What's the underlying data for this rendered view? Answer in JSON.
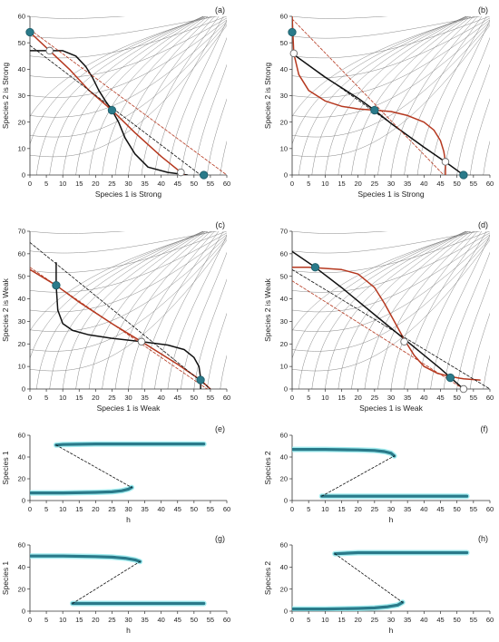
{
  "chart_data": [
    {
      "panel": "(a)",
      "type": "line",
      "xlabel": "Species 1 is Strong",
      "ylabel": "Species 2 is Strong",
      "xlim": [
        0,
        60
      ],
      "ylim": [
        0,
        60
      ],
      "xticks": [
        0,
        5,
        10,
        15,
        20,
        25,
        30,
        35,
        40,
        45,
        50,
        55,
        60
      ],
      "yticks": [
        0,
        10,
        20,
        30,
        40,
        50,
        60
      ],
      "series": [
        {
          "role": "nullcline-black",
          "color": "#111111",
          "x": [
            0,
            5,
            10,
            14,
            17,
            19,
            21,
            23,
            25,
            27,
            29,
            32,
            36,
            42,
            48
          ],
          "y": [
            47,
            47,
            47,
            45,
            41,
            37,
            32,
            28,
            24.5,
            20,
            14,
            8,
            3,
            1,
            0
          ]
        },
        {
          "role": "nullcline-red",
          "color": "#b5381f",
          "x": [
            0,
            6,
            12,
            18,
            25,
            32,
            40,
            47
          ],
          "y": [
            54,
            47,
            40,
            32,
            24.5,
            16,
            7,
            0
          ]
        },
        {
          "role": "dashed-black",
          "color": "#111111",
          "x": [
            0,
            52
          ],
          "y": [
            49,
            0
          ]
        },
        {
          "role": "dashed-red",
          "color": "#b5381f",
          "x": [
            0,
            60
          ],
          "y": [
            55,
            0
          ]
        }
      ],
      "points": [
        {
          "kind": "stable",
          "x": 0,
          "y": 54
        },
        {
          "kind": "unstable",
          "x": 6,
          "y": 47
        },
        {
          "kind": "stable",
          "x": 25,
          "y": 24.5
        },
        {
          "kind": "unstable",
          "x": 46,
          "y": 1
        },
        {
          "kind": "stable",
          "x": 53,
          "y": 0
        }
      ]
    },
    {
      "panel": "(b)",
      "type": "line",
      "xlabel": "Species 1 is Strong",
      "ylabel": "Species 2 is Strong",
      "xlim": [
        0,
        60
      ],
      "ylim": [
        0,
        60
      ],
      "xticks": [
        0,
        5,
        10,
        15,
        20,
        25,
        30,
        35,
        40,
        45,
        50,
        55,
        60
      ],
      "yticks": [
        0,
        10,
        20,
        30,
        40,
        50,
        60
      ],
      "series": [
        {
          "role": "nullcline-black",
          "color": "#111111",
          "x": [
            0,
            10,
            20,
            25,
            30,
            40,
            47,
            52
          ],
          "y": [
            46,
            37,
            29,
            24.5,
            19.5,
            10.5,
            4.5,
            0
          ]
        },
        {
          "role": "nullcline-red",
          "color": "#b5381f",
          "x": [
            0,
            0.5,
            2,
            5,
            10,
            15,
            20,
            25,
            30,
            35,
            40,
            43,
            45,
            46,
            46.5,
            46.5
          ],
          "y": [
            60,
            46,
            38,
            32,
            28,
            26,
            25,
            24.5,
            24,
            22.5,
            20,
            17,
            13,
            9,
            5,
            0
          ]
        },
        {
          "role": "dashed-black",
          "color": "#111111",
          "x": [
            0,
            52
          ],
          "y": [
            46,
            0
          ]
        },
        {
          "role": "dashed-red",
          "color": "#b5381f",
          "x": [
            0,
            46
          ],
          "y": [
            59,
            0
          ]
        }
      ],
      "points": [
        {
          "kind": "stable",
          "x": 0,
          "y": 54
        },
        {
          "kind": "unstable",
          "x": 0.5,
          "y": 46
        },
        {
          "kind": "stable",
          "x": 25,
          "y": 24.5
        },
        {
          "kind": "unstable",
          "x": 46.5,
          "y": 5
        },
        {
          "kind": "stable",
          "x": 52,
          "y": 0
        }
      ]
    },
    {
      "panel": "(c)",
      "type": "line",
      "xlabel": "Species 1 is Weak",
      "ylabel": "Species 2 is Weak",
      "xlim": [
        0,
        60
      ],
      "ylim": [
        0,
        70
      ],
      "xticks": [
        0,
        5,
        10,
        15,
        20,
        25,
        30,
        35,
        40,
        45,
        50,
        55,
        60
      ],
      "yticks": [
        0,
        10,
        20,
        30,
        40,
        50,
        60,
        70
      ],
      "series": [
        {
          "role": "nullcline-black",
          "color": "#111111",
          "x": [
            8,
            8,
            8.5,
            10,
            13,
            18,
            25,
            34,
            42,
            47,
            50,
            51.5,
            52,
            52
          ],
          "y": [
            56,
            46,
            35,
            29,
            26,
            24,
            22.5,
            21,
            19.5,
            17.5,
            14,
            10,
            5,
            0
          ]
        },
        {
          "role": "nullcline-red",
          "color": "#b5381f",
          "x": [
            0,
            8,
            15,
            25,
            34,
            45,
            52,
            55
          ],
          "y": [
            53,
            46,
            38.5,
            29,
            21,
            11,
            4,
            0
          ]
        },
        {
          "role": "dashed-black",
          "color": "#111111",
          "x": [
            0,
            55
          ],
          "y": [
            65,
            0
          ]
        },
        {
          "role": "dashed-red",
          "color": "#b5381f",
          "x": [
            0,
            54
          ],
          "y": [
            54,
            0
          ]
        }
      ],
      "points": [
        {
          "kind": "stable",
          "x": 8,
          "y": 46
        },
        {
          "kind": "unstable",
          "x": 34,
          "y": 21
        },
        {
          "kind": "stable",
          "x": 52,
          "y": 4
        }
      ]
    },
    {
      "panel": "(d)",
      "type": "line",
      "xlabel": "Species 1 is Weak",
      "ylabel": "Species 2 is Weak",
      "xlim": [
        0,
        60
      ],
      "ylim": [
        0,
        70
      ],
      "xticks": [
        0,
        5,
        10,
        15,
        20,
        25,
        30,
        35,
        40,
        45,
        50,
        55,
        60
      ],
      "yticks": [
        0,
        10,
        20,
        30,
        40,
        50,
        60,
        70
      ],
      "series": [
        {
          "role": "nullcline-black",
          "color": "#111111",
          "x": [
            0,
            7,
            15,
            25,
            35,
            45,
            52
          ],
          "y": [
            61,
            54,
            45,
            33,
            21,
            9,
            0
          ]
        },
        {
          "role": "nullcline-red",
          "color": "#b5381f",
          "x": [
            0,
            5,
            10,
            15,
            20,
            25,
            28,
            31,
            34,
            37,
            40,
            44,
            48,
            52,
            57
          ],
          "y": [
            54,
            54,
            53.5,
            53,
            51,
            45,
            38,
            30,
            22,
            15,
            10,
            7,
            5.5,
            4.5,
            4
          ]
        },
        {
          "role": "dashed-black",
          "color": "#111111",
          "x": [
            0,
            60
          ],
          "y": [
            53,
            0
          ]
        },
        {
          "role": "dashed-red",
          "color": "#b5381f",
          "x": [
            0,
            52
          ],
          "y": [
            48,
            0
          ]
        }
      ],
      "points": [
        {
          "kind": "stable",
          "x": 7,
          "y": 54
        },
        {
          "kind": "unstable",
          "x": 34,
          "y": 21
        },
        {
          "kind": "stable",
          "x": 48,
          "y": 5
        },
        {
          "kind": "unstable",
          "x": 52,
          "y": 0
        }
      ]
    },
    {
      "panel": "(e)",
      "type": "line",
      "xlabel": "h",
      "ylabel": "Species 1",
      "xlim": [
        0,
        60
      ],
      "ylim": [
        0,
        60
      ],
      "xticks": [
        0,
        5,
        10,
        15,
        20,
        25,
        30,
        35,
        40,
        45,
        50,
        55,
        60
      ],
      "yticks": [
        0,
        20,
        40,
        60
      ],
      "series": [
        {
          "role": "upper-branch",
          "color": "#2a7a8a",
          "x": [
            8,
            10,
            20,
            30,
            40,
            53
          ],
          "y": [
            51,
            51.5,
            52,
            52,
            52,
            52
          ]
        },
        {
          "role": "lower-branch",
          "color": "#2a7a8a",
          "x": [
            0,
            10,
            20,
            25,
            28,
            30,
            31
          ],
          "y": [
            7,
            7,
            7.5,
            8,
            9,
            10.5,
            12
          ]
        },
        {
          "role": "unstable-branch",
          "color": "#111111",
          "x": [
            8,
            31
          ],
          "y": [
            51,
            12
          ]
        }
      ]
    },
    {
      "panel": "(f)",
      "type": "line",
      "xlabel": "h",
      "ylabel": "Species 2",
      "xlim": [
        0,
        60
      ],
      "ylim": [
        0,
        60
      ],
      "xticks": [
        0,
        5,
        10,
        15,
        20,
        25,
        30,
        35,
        40,
        45,
        50,
        55,
        60
      ],
      "yticks": [
        0,
        20,
        40,
        60
      ],
      "series": [
        {
          "role": "upper-branch",
          "color": "#2a7a8a",
          "x": [
            0,
            10,
            20,
            25,
            28,
            30,
            31
          ],
          "y": [
            47,
            47,
            46.5,
            46,
            45,
            43.5,
            41
          ]
        },
        {
          "role": "lower-branch",
          "color": "#2a7a8a",
          "x": [
            9,
            20,
            30,
            40,
            53
          ],
          "y": [
            4,
            4,
            4,
            4,
            4
          ]
        },
        {
          "role": "unstable-branch",
          "color": "#111111",
          "x": [
            9,
            31
          ],
          "y": [
            4,
            41
          ]
        }
      ]
    },
    {
      "panel": "(g)",
      "type": "line",
      "xlabel": "h",
      "ylabel": "Species 1",
      "xlim": [
        0,
        60
      ],
      "ylim": [
        0,
        60
      ],
      "xticks": [
        0,
        5,
        10,
        15,
        20,
        25,
        30,
        35,
        40,
        45,
        50,
        55,
        60
      ],
      "yticks": [
        0,
        20,
        40,
        60
      ],
      "series": [
        {
          "role": "upper-branch",
          "color": "#2a7a8a",
          "x": [
            0,
            10,
            20,
            25,
            29,
            32,
            33.5
          ],
          "y": [
            50,
            50,
            49.5,
            49,
            48,
            46.5,
            45
          ]
        },
        {
          "role": "lower-branch",
          "color": "#2a7a8a",
          "x": [
            13,
            20,
            30,
            40,
            53
          ],
          "y": [
            7,
            7,
            7,
            7,
            7
          ]
        },
        {
          "role": "unstable-branch",
          "color": "#111111",
          "x": [
            13,
            33.5
          ],
          "y": [
            7,
            45
          ]
        }
      ]
    },
    {
      "panel": "(h)",
      "type": "line",
      "xlabel": "h",
      "ylabel": "Species 2",
      "xlim": [
        0,
        60
      ],
      "ylim": [
        0,
        60
      ],
      "xticks": [
        0,
        5,
        10,
        15,
        20,
        25,
        30,
        35,
        40,
        45,
        50,
        55,
        60
      ],
      "yticks": [
        0,
        20,
        40,
        60
      ],
      "series": [
        {
          "role": "upper-branch",
          "color": "#2a7a8a",
          "x": [
            13,
            20,
            30,
            40,
            53
          ],
          "y": [
            52,
            53,
            53,
            53,
            53
          ]
        },
        {
          "role": "lower-branch",
          "color": "#2a7a8a",
          "x": [
            0,
            10,
            20,
            25,
            29,
            32,
            33.5
          ],
          "y": [
            2,
            2,
            2.5,
            3,
            4,
            5.5,
            8
          ]
        },
        {
          "role": "unstable-branch",
          "color": "#111111",
          "x": [
            13,
            33.5
          ],
          "y": [
            52,
            8
          ]
        }
      ]
    }
  ]
}
